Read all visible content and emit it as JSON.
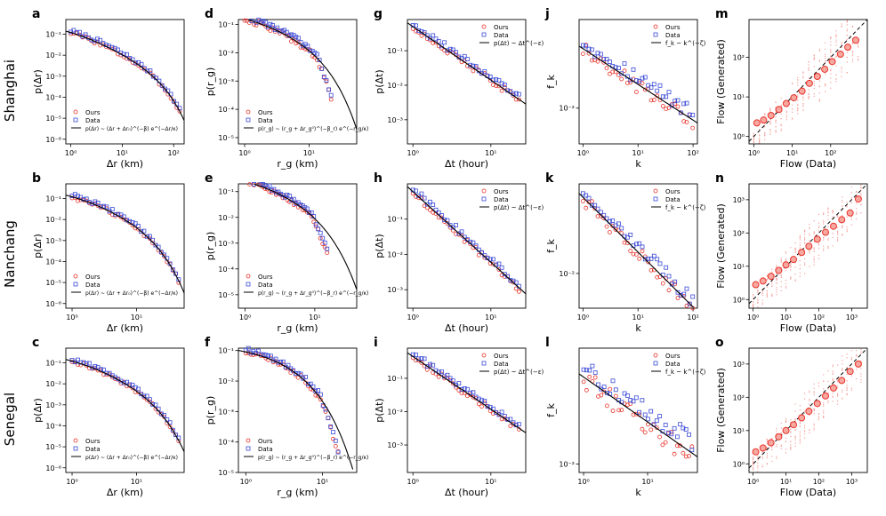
{
  "figure": {
    "row_labels": [
      "Shanghai",
      "Nanchang",
      "Senegal"
    ],
    "colors": {
      "ours": "#e8332a",
      "data": "#3b4bd6",
      "fit": "#000000",
      "scatter": "#f3a39e"
    }
  },
  "chart_data": [
    {
      "id": "a",
      "type": "scatter",
      "panel_letter": "a",
      "xlabel": "Δr (km)",
      "ylabel": "p(Δr)",
      "xscale": "log",
      "yscale": "log",
      "xlim": [
        0.8,
        160
      ],
      "ylim": [
        6e-07,
        0.5
      ],
      "xticks": [
        1,
        10,
        100
      ],
      "xtick_labels": [
        "10⁰",
        "10¹",
        "10²"
      ],
      "yticks": [
        1e-06,
        1e-05,
        0.0001,
        0.001,
        0.01,
        0.1
      ],
      "ytick_labels": [
        "10⁻⁶",
        "10⁻⁵",
        "10⁻⁴",
        "10⁻³",
        "10⁻²",
        "10⁻¹"
      ],
      "legend_labels": [
        "Ours",
        "Data",
        "p(Δr) ~ (Δr + Δr₀)^(−β) e^(−Δr/κ)"
      ],
      "fit": {
        "model": "trunc",
        "A": 0.12,
        "x0": 0.7,
        "beta": 1.2,
        "kappa": 38
      }
    },
    {
      "id": "d",
      "type": "scatter",
      "panel_letter": "d",
      "xlabel": "r_g (km)",
      "ylabel": "p(r_g)",
      "xscale": "log",
      "yscale": "log",
      "xlim": [
        0.8,
        55
      ],
      "ylim": [
        6e-06,
        0.15
      ],
      "xticks": [
        1,
        10
      ],
      "xtick_labels": [
        "10⁰",
        "10¹"
      ],
      "yticks": [
        1e-05,
        0.0001,
        0.001,
        0.01,
        0.1
      ],
      "ytick_labels": [
        "10⁻⁵",
        "10⁻⁴",
        "10⁻³",
        "10⁻²",
        "10⁻¹"
      ],
      "legend_labels": [
        "Ours",
        "Data",
        "p(r_g) ~ (r_g + Δr_g⁰)^(−β_r) e^(−r_g/κ)"
      ],
      "fit": {
        "model": "trunc",
        "A": 0.16,
        "x0": 0.6,
        "beta": 0.85,
        "kappa": 9
      },
      "cutoff": 22
    },
    {
      "id": "g",
      "type": "scatter",
      "panel_letter": "g",
      "xlabel": "Δt (hour)",
      "ylabel": "p(Δt)",
      "xscale": "log",
      "yscale": "log",
      "xlim": [
        0.85,
        28
      ],
      "ylim": [
        0.0002,
        0.8
      ],
      "xticks": [
        1,
        10
      ],
      "xtick_labels": [
        "10⁰",
        "10¹"
      ],
      "yticks": [
        0.001,
        0.01,
        0.1
      ],
      "ytick_labels": [
        "10⁻³",
        "10⁻²",
        "10⁻¹"
      ],
      "legend_labels": [
        "Ours",
        "Data",
        "p(Δt) ~ Δt^(−ε)"
      ],
      "fit": {
        "model": "power",
        "A": 0.5,
        "b": 1.55
      }
    },
    {
      "id": "j",
      "type": "scatter",
      "panel_letter": "j",
      "xlabel": "k",
      "ylabel": "f_k",
      "xscale": "log",
      "yscale": "log",
      "xlim": [
        0.85,
        120
      ],
      "ylim": [
        0.0038,
        0.11
      ],
      "xticks": [
        1,
        10,
        100
      ],
      "xtick_labels": [
        "10⁰",
        "10¹",
        "10²"
      ],
      "yticks": [
        0.01
      ],
      "ytick_labels": [
        "10⁻²"
      ],
      "legend_labels": [
        "Ours",
        "Data",
        "f_k ~ k^(−ζ)"
      ],
      "fit": {
        "model": "power",
        "A": 0.05,
        "b": 0.42
      }
    },
    {
      "id": "m",
      "type": "scatter",
      "panel_letter": "m",
      "xlabel": "Flow (Data)",
      "ylabel": "Flow (Generated)",
      "xscale": "log",
      "yscale": "log",
      "xlim": [
        0.75,
        900
      ],
      "ylim": [
        0.65,
        900
      ],
      "xticks": [
        1,
        10,
        100
      ],
      "xtick_labels": [
        "10⁰",
        "10¹",
        "10²"
      ],
      "yticks": [
        1,
        10,
        100
      ],
      "ytick_labels": [
        "10⁰",
        "10¹",
        "10²"
      ],
      "circles": [
        {
          "x": 1.2,
          "y": 2.2
        },
        {
          "x": 1.8,
          "y": 2.6
        },
        {
          "x": 2.8,
          "y": 3.4
        },
        {
          "x": 4.5,
          "y": 4.8
        },
        {
          "x": 7,
          "y": 6.8
        },
        {
          "x": 11,
          "y": 9.5
        },
        {
          "x": 18,
          "y": 14
        },
        {
          "x": 28,
          "y": 22
        },
        {
          "x": 45,
          "y": 33
        },
        {
          "x": 70,
          "y": 50
        },
        {
          "x": 110,
          "y": 78
        },
        {
          "x": 180,
          "y": 120
        },
        {
          "x": 280,
          "y": 180
        },
        {
          "x": 450,
          "y": 270
        }
      ]
    },
    {
      "id": "b",
      "type": "scatter",
      "panel_letter": "b",
      "xlabel": "Δr (km)",
      "ylabel": "p(Δr)",
      "xscale": "log",
      "yscale": "log",
      "xlim": [
        0.8,
        55
      ],
      "ylim": [
        6e-07,
        0.5
      ],
      "xticks": [
        1,
        10
      ],
      "xtick_labels": [
        "10⁰",
        "10¹"
      ],
      "yticks": [
        1e-06,
        1e-05,
        0.0001,
        0.001,
        0.01,
        0.1
      ],
      "ytick_labels": [
        "10⁻⁶",
        "10⁻⁵",
        "10⁻⁴",
        "10⁻³",
        "10⁻²",
        "10⁻¹"
      ],
      "legend_labels": [
        "Ours",
        "Data",
        "p(Δr) ~ (Δr + Δr₀)^(−β) e^(−Δr/κ)"
      ],
      "fit": {
        "model": "trunc",
        "A": 0.12,
        "x0": 0.7,
        "beta": 1.3,
        "kappa": 9
      }
    },
    {
      "id": "e",
      "type": "scatter",
      "panel_letter": "e",
      "xlabel": "r_g (km)",
      "ylabel": "p(r_g)",
      "xscale": "log",
      "yscale": "log",
      "xlim": [
        0.8,
        40
      ],
      "ylim": [
        3e-06,
        0.2
      ],
      "xticks": [
        1,
        10
      ],
      "xtick_labels": [
        "10⁰",
        "10¹"
      ],
      "yticks": [
        1e-05,
        0.0001,
        0.001,
        0.01,
        0.1
      ],
      "ytick_labels": [
        "10⁻⁵",
        "10⁻⁴",
        "10⁻³",
        "10⁻²",
        "10⁻¹"
      ],
      "legend_labels": [
        "Ours",
        "Data",
        "p(r_g) ~ (r_g + Δr_g⁰)^(−β_r) e^(−r_g/κ)"
      ],
      "fit": {
        "model": "trunc",
        "A": 0.25,
        "x0": 0.7,
        "beta": 1.0,
        "kappa": 6
      },
      "cutoff": 15
    },
    {
      "id": "h",
      "type": "scatter",
      "panel_letter": "h",
      "xlabel": "Δt (hour)",
      "ylabel": "p(Δt)",
      "xscale": "log",
      "yscale": "log",
      "xlim": [
        0.85,
        28
      ],
      "ylim": [
        0.0003,
        1.0
      ],
      "xticks": [
        1,
        10
      ],
      "xtick_labels": [
        "10⁰",
        "10¹"
      ],
      "yticks": [
        0.001,
        0.01,
        0.1
      ],
      "ytick_labels": [
        "10⁻³",
        "10⁻²",
        "10⁻¹"
      ],
      "legend_labels": [
        "Ours",
        "Data",
        "p(Δt) ~ Δt^(−ε)"
      ],
      "fit": {
        "model": "power",
        "A": 0.6,
        "b": 2.0
      }
    },
    {
      "id": "k",
      "type": "scatter",
      "panel_letter": "k",
      "xlabel": "k",
      "ylabel": "f_k",
      "xscale": "log",
      "yscale": "log",
      "xlim": [
        0.85,
        120
      ],
      "ylim": [
        0.0035,
        0.15
      ],
      "xticks": [
        1,
        10,
        100
      ],
      "xtick_labels": [
        "10⁰",
        "10¹",
        "10²"
      ],
      "yticks": [
        0.01
      ],
      "ytick_labels": [
        "10⁻²"
      ],
      "legend_labels": [
        "Ours",
        "Data",
        "f_k ~ k^(−ζ)"
      ],
      "fit": {
        "model": "power",
        "A": 0.1,
        "b": 0.72
      }
    },
    {
      "id": "n",
      "type": "scatter",
      "panel_letter": "n",
      "xlabel": "Flow (Data)",
      "ylabel": "Flow (Generated)",
      "xscale": "log",
      "yscale": "log",
      "xlim": [
        0.75,
        3000
      ],
      "ylim": [
        0.55,
        3000
      ],
      "xticks": [
        1,
        10,
        100,
        1000
      ],
      "xtick_labels": [
        "10⁰",
        "10¹",
        "10²",
        "10³"
      ],
      "yticks": [
        1,
        10,
        100,
        1000
      ],
      "ytick_labels": [
        "10⁰",
        "10¹",
        "10²",
        "10³"
      ],
      "circles": [
        {
          "x": 1.2,
          "y": 2.8
        },
        {
          "x": 2,
          "y": 3.6
        },
        {
          "x": 3.5,
          "y": 5
        },
        {
          "x": 6,
          "y": 7.5
        },
        {
          "x": 10,
          "y": 11
        },
        {
          "x": 17,
          "y": 16
        },
        {
          "x": 30,
          "y": 26
        },
        {
          "x": 50,
          "y": 40
        },
        {
          "x": 90,
          "y": 65
        },
        {
          "x": 160,
          "y": 105
        },
        {
          "x": 280,
          "y": 160
        },
        {
          "x": 500,
          "y": 250
        },
        {
          "x": 900,
          "y": 400
        },
        {
          "x": 1600,
          "y": 1050
        }
      ]
    },
    {
      "id": "c",
      "type": "scatter",
      "panel_letter": "c",
      "xlabel": "Δr (km)",
      "ylabel": "p(Δr)",
      "xscale": "log",
      "yscale": "log",
      "xlim": [
        0.8,
        55
      ],
      "ylim": [
        6e-07,
        0.5
      ],
      "xticks": [
        1,
        10
      ],
      "xtick_labels": [
        "10⁰",
        "10¹"
      ],
      "yticks": [
        1e-06,
        1e-05,
        0.0001,
        0.001,
        0.01,
        0.1
      ],
      "ytick_labels": [
        "10⁻⁶",
        "10⁻⁵",
        "10⁻⁴",
        "10⁻³",
        "10⁻²",
        "10⁻¹"
      ],
      "legend_labels": [
        "Ours",
        "Data",
        "p(Δr) ~ (Δr + Δr₀)^(−β) e^(−Δr/κ)"
      ],
      "fit": {
        "model": "trunc",
        "A": 0.12,
        "x0": 0.7,
        "beta": 1.3,
        "kappa": 10
      }
    },
    {
      "id": "f",
      "type": "scatter",
      "panel_letter": "f",
      "xlabel": "r_g (km)",
      "ylabel": "p(r_g)",
      "xscale": "log",
      "yscale": "log",
      "xlim": [
        0.8,
        28
      ],
      "ylim": [
        1e-05,
        0.12
      ],
      "xticks": [
        1,
        10
      ],
      "xtick_labels": [
        "10⁰",
        "10¹"
      ],
      "yticks": [
        1e-05,
        0.0001,
        0.001,
        0.01,
        0.1
      ],
      "ytick_labels": [
        "10⁻⁵",
        "10⁻⁴",
        "10⁻³",
        "10⁻²",
        "10⁻¹"
      ],
      "legend_labels": [
        "Ours",
        "Data",
        "p(r_g) ~ (r_g + Δr_g⁰)^(−β_r) e^(−r_g/κ)"
      ],
      "fit": {
        "model": "trunc",
        "A": 0.09,
        "x0": 1.5,
        "beta": 0.6,
        "kappa": 3.2
      },
      "cutoff": 16
    },
    {
      "id": "i",
      "type": "scatter",
      "panel_letter": "i",
      "xlabel": "Δt (hour)",
      "ylabel": "p(Δt)",
      "xscale": "log",
      "yscale": "log",
      "xlim": [
        0.85,
        28
      ],
      "ylim": [
        0.00015,
        0.8
      ],
      "xticks": [
        1,
        10
      ],
      "xtick_labels": [
        "10⁰",
        "10¹"
      ],
      "yticks": [
        0.001,
        0.01,
        0.1
      ],
      "ytick_labels": [
        "10⁻³",
        "10⁻²",
        "10⁻¹"
      ],
      "legend_labels": [
        "Ours",
        "Data",
        "p(Δt) ~ Δt^(−ε)"
      ],
      "fit": {
        "model": "power",
        "A": 0.45,
        "b": 1.58
      }
    },
    {
      "id": "l",
      "type": "scatter",
      "panel_letter": "l",
      "xlabel": "k",
      "ylabel": "f_k",
      "xscale": "log",
      "yscale": "log",
      "xlim": [
        0.85,
        60
      ],
      "ylim": [
        0.0085,
        0.09
      ],
      "xticks": [
        1,
        10
      ],
      "xtick_labels": [
        "10⁰",
        "10¹"
      ],
      "yticks": [
        0.01
      ],
      "ytick_labels": [
        "10⁻²"
      ],
      "legend_labels": [
        "Ours",
        "Data",
        "f_k ~ k^(−ζ)"
      ],
      "fit": {
        "model": "power",
        "A": 0.052,
        "b": 0.37
      }
    },
    {
      "id": "o",
      "type": "scatter",
      "panel_letter": "o",
      "xlabel": "Flow (Data)",
      "ylabel": "Flow (Generated)",
      "xscale": "log",
      "yscale": "log",
      "xlim": [
        0.75,
        3000
      ],
      "ylim": [
        0.55,
        3000
      ],
      "xticks": [
        1,
        10,
        100,
        1000
      ],
      "xtick_labels": [
        "10⁰",
        "10¹",
        "10²",
        "10³"
      ],
      "yticks": [
        1,
        10,
        100,
        1000
      ],
      "ytick_labels": [
        "10⁰",
        "10¹",
        "10²",
        "10³"
      ],
      "circles": [
        {
          "x": 1.2,
          "y": 2.3
        },
        {
          "x": 2,
          "y": 3
        },
        {
          "x": 3.5,
          "y": 4.3
        },
        {
          "x": 6,
          "y": 6.5
        },
        {
          "x": 10,
          "y": 10
        },
        {
          "x": 17,
          "y": 15
        },
        {
          "x": 30,
          "y": 24
        },
        {
          "x": 50,
          "y": 38
        },
        {
          "x": 90,
          "y": 65
        },
        {
          "x": 160,
          "y": 110
        },
        {
          "x": 280,
          "y": 190
        },
        {
          "x": 500,
          "y": 320
        },
        {
          "x": 900,
          "y": 600
        },
        {
          "x": 1600,
          "y": 1000
        }
      ]
    }
  ]
}
